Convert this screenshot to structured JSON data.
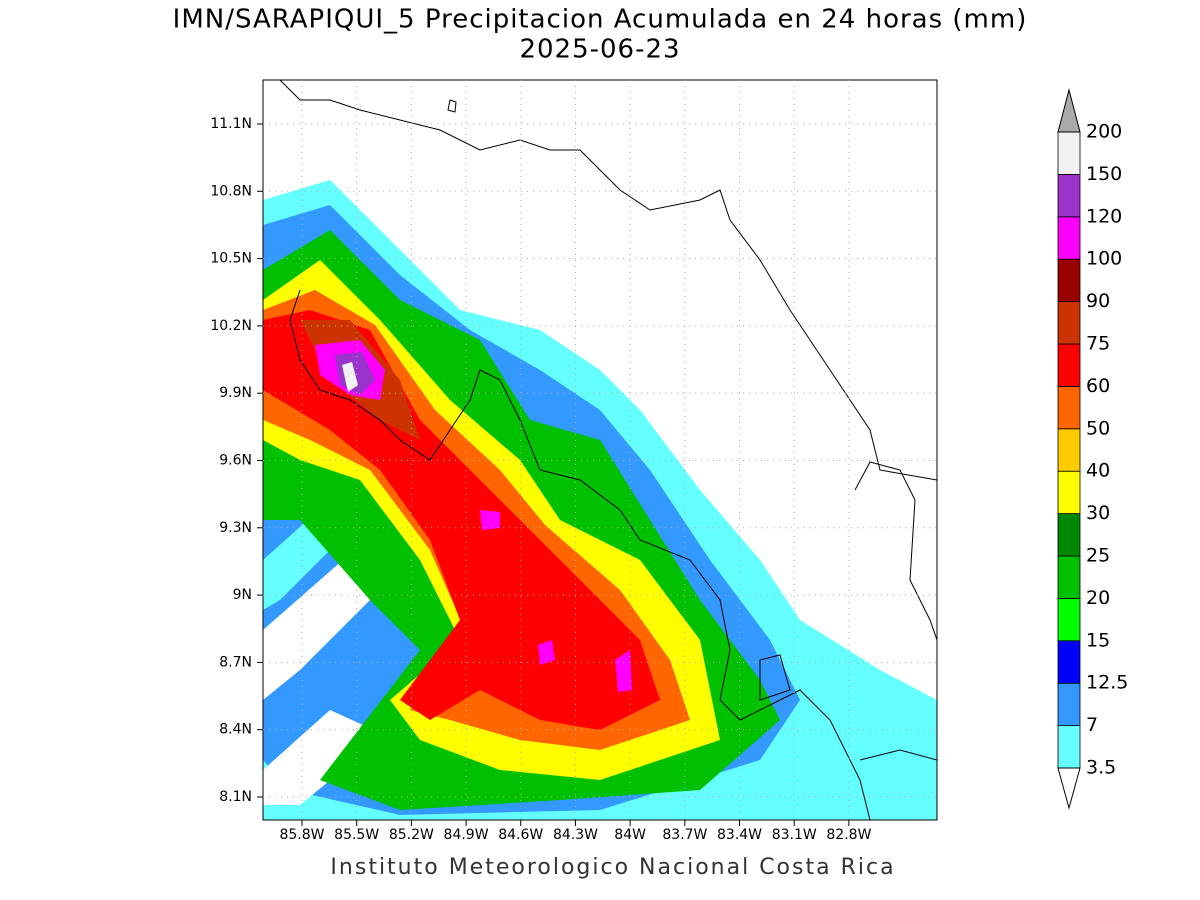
{
  "title": "IMN/SARAPIQUI_5 Precipitacion Acumulada en 24 horas (mm)",
  "subtitle": "2025-06-23",
  "map": {
    "lat_ticks": [
      {
        "value": 11.1,
        "label": "11.1N"
      },
      {
        "value": 10.8,
        "label": "10.8N"
      },
      {
        "value": 10.5,
        "label": "10.5N"
      },
      {
        "value": 10.2,
        "label": "10.2N"
      },
      {
        "value": 9.9,
        "label": "9.9N"
      },
      {
        "value": 9.6,
        "label": "9.6N"
      },
      {
        "value": 9.3,
        "label": "9.3N"
      },
      {
        "value": 9,
        "label": "9N"
      },
      {
        "value": 8.7,
        "label": "8.7N"
      },
      {
        "value": 8.4,
        "label": "8.4N"
      },
      {
        "value": 8.1,
        "label": "8.1N"
      }
    ],
    "lon_ticks": [
      {
        "value": -85.8,
        "label": "85.8W"
      },
      {
        "value": -85.5,
        "label": "85.5W"
      },
      {
        "value": -85.2,
        "label": "85.2W"
      },
      {
        "value": -84.9,
        "label": "84.9W"
      },
      {
        "value": -84.6,
        "label": "84.6W"
      },
      {
        "value": -84.3,
        "label": "84.3W"
      },
      {
        "value": -84,
        "label": "84W"
      },
      {
        "value": -83.7,
        "label": "83.7W"
      },
      {
        "value": -83.4,
        "label": "83.4W"
      },
      {
        "value": -83.1,
        "label": "83.1W"
      },
      {
        "value": -82.8,
        "label": "82.8W"
      }
    ]
  },
  "colorbar": {
    "levels": [
      3.5,
      7,
      12.5,
      15,
      20,
      25,
      30,
      40,
      50,
      60,
      75,
      90,
      100,
      120,
      150,
      200
    ],
    "colors": [
      "#66ffff",
      "#3399ff",
      "#0000ff",
      "#00ff00",
      "#00c000",
      "#008800",
      "#ffff00",
      "#ffcc00",
      "#ff6600",
      "#ff0000",
      "#cc3300",
      "#990000",
      "#ff00ff",
      "#9933cc",
      "#f2f2f2"
    ],
    "under_color": "#ffffff",
    "over_color": "#aaaaaa"
  },
  "footer": "Instituto Meteorologico Nacional Costa Rica"
}
